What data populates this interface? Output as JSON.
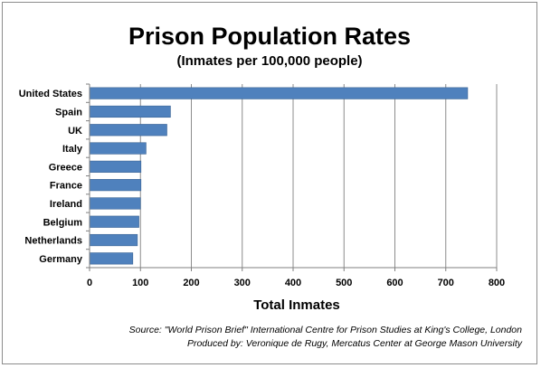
{
  "chart_data": {
    "type": "bar",
    "orientation": "horizontal",
    "title": "Prison Population Rates",
    "subtitle": "(Inmates per 100,000 people)",
    "xlabel": "Total Inmates",
    "ylabel": "",
    "categories": [
      "United States",
      "Spain",
      "UK",
      "Italy",
      "Greece",
      "France",
      "Ireland",
      "Belgium",
      "Netherlands",
      "Germany"
    ],
    "values": [
      743,
      159,
      152,
      111,
      101,
      101,
      100,
      97,
      94,
      85
    ],
    "xlim": [
      0,
      800
    ],
    "xticks": [
      0,
      100,
      200,
      300,
      400,
      500,
      600,
      700,
      800
    ],
    "grid": "vertical",
    "bar_color": "#4f81bd",
    "bar_edge_color": "#3b6494"
  },
  "source_line1": "Source: \"World Prison Brief\" International  Centre for Prison Studies at King's College, London",
  "source_line2": "Produced by: Veronique de Rugy, Mercatus Center at George Mason University"
}
